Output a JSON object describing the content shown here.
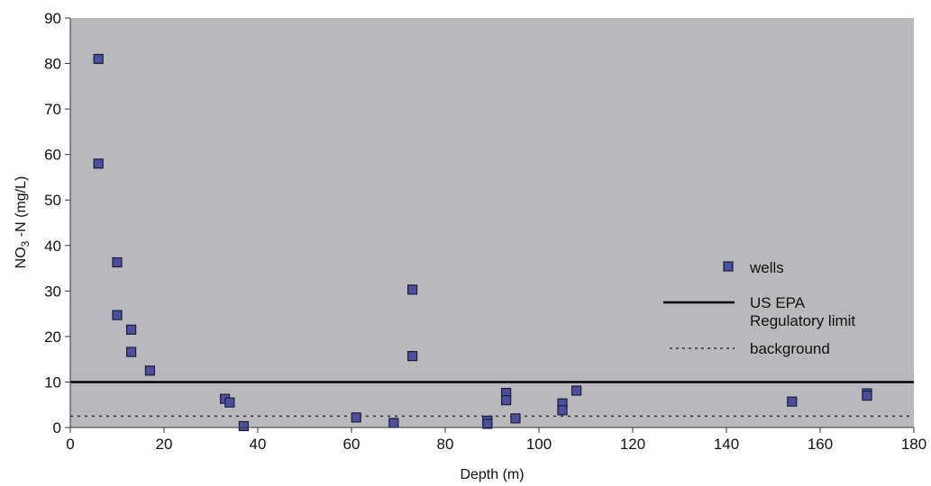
{
  "chart_data": {
    "type": "scatter",
    "title": "",
    "xlabel": "Depth (m)",
    "ylabel_main": "NO",
    "ylabel_sub": "3",
    "ylabel_rest": " -N (mg/L)",
    "xlim": [
      0,
      180
    ],
    "ylim": [
      0,
      90
    ],
    "x_ticks": [
      "0",
      "20",
      "40",
      "60",
      "80",
      "100",
      "120",
      "140",
      "160",
      "180"
    ],
    "y_ticks": [
      "0",
      "10",
      "20",
      "30",
      "40",
      "50",
      "60",
      "70",
      "80",
      "90"
    ],
    "grid": false,
    "legend_position": "right",
    "series": [
      {
        "name": "wells",
        "marker": "square",
        "color": "#4b4f9e",
        "points": [
          {
            "x": 6,
            "y": 81
          },
          {
            "x": 6,
            "y": 58
          },
          {
            "x": 10,
            "y": 36.3
          },
          {
            "x": 10,
            "y": 24.7
          },
          {
            "x": 13,
            "y": 21.5
          },
          {
            "x": 13,
            "y": 16.6
          },
          {
            "x": 17,
            "y": 12.5
          },
          {
            "x": 33,
            "y": 6.3
          },
          {
            "x": 34,
            "y": 5.5
          },
          {
            "x": 37,
            "y": 0.3
          },
          {
            "x": 61,
            "y": 2.2
          },
          {
            "x": 69,
            "y": 1.0
          },
          {
            "x": 73,
            "y": 30.3
          },
          {
            "x": 73,
            "y": 15.7
          },
          {
            "x": 89,
            "y": 1.5
          },
          {
            "x": 89,
            "y": 0.8
          },
          {
            "x": 93,
            "y": 7.6
          },
          {
            "x": 93,
            "y": 6.0
          },
          {
            "x": 95,
            "y": 2.0
          },
          {
            "x": 105,
            "y": 5.3
          },
          {
            "x": 105,
            "y": 3.8
          },
          {
            "x": 108,
            "y": 8.1
          },
          {
            "x": 154,
            "y": 5.7
          },
          {
            "x": 170,
            "y": 7.5
          },
          {
            "x": 170,
            "y": 7.0
          }
        ]
      }
    ],
    "reference_lines": [
      {
        "name_line1": "US EPA",
        "name_line2": "Regulatory limit",
        "y": 10,
        "style": "solid",
        "color": "#000000"
      },
      {
        "name": "background",
        "y": 2.5,
        "style": "dotted",
        "color": "#333333"
      }
    ],
    "colors": {
      "plot_background": "#b9b9bb",
      "marker_fill": "#4b4f9e",
      "marker_edge": "#1c1c3a"
    }
  }
}
